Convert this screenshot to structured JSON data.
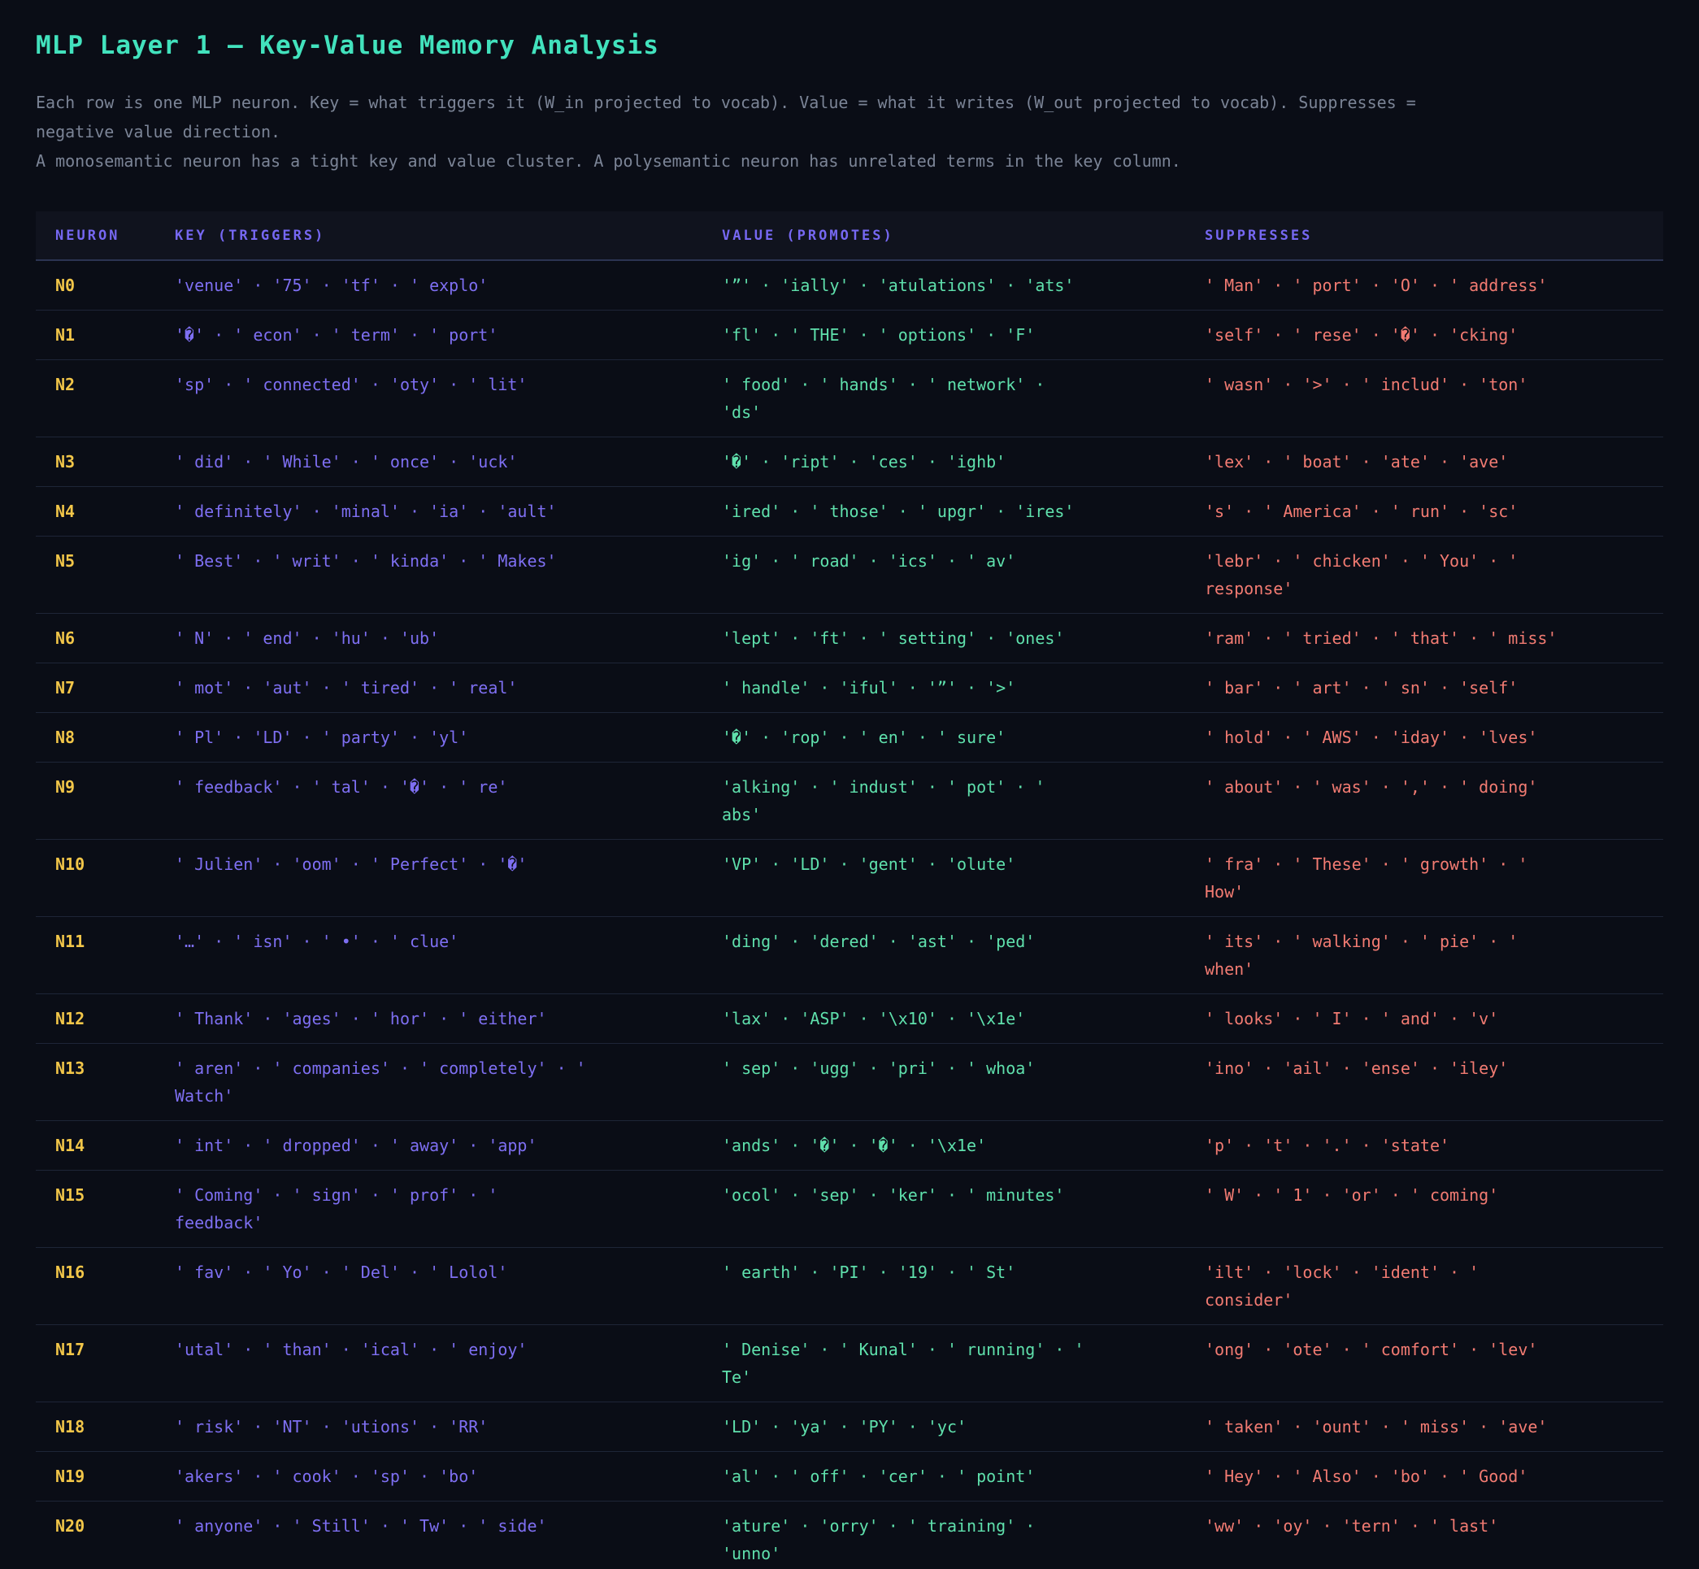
{
  "page": {
    "title": "MLP Layer 1 — Key-Value Memory Analysis",
    "intro_line1": "Each row is one MLP neuron. Key = what triggers it (W_in projected to vocab). Value = what it writes (W_out projected to vocab). Suppresses = negative value direction.",
    "intro_line2": "A monosemantic neuron has a tight key and value cluster. A polysemantic neuron has unrelated terms in the key column."
  },
  "palette": {
    "title_accent": "#42e2bd",
    "header_accent": "#7668f2",
    "neuron_color": "#f2c649",
    "key_color": "#7e6ff2",
    "value_color": "#5fe0ac",
    "suppress_color": "#f27b72",
    "page_bg": "#0a0d16",
    "header_bg": "#10131e"
  },
  "table": {
    "headers": {
      "neuron": "NEURON",
      "key": "KEY (TRIGGERS)",
      "value": "VALUE (PROMOTES)",
      "suppresses": "SUPPRESSES"
    },
    "token_separator": " · ",
    "rows": [
      {
        "id": "N0",
        "key": "'venue' · '75' · 'tf' · ' explo'",
        "value": "'”' · 'ially' · 'atulations' · 'ats'",
        "suppresses": "' Man' · ' port' · 'O' · ' address'"
      },
      {
        "id": "N1",
        "key": "'�' · ' econ' · ' term' · ' port'",
        "value": "'fl' · ' THE' · ' options' · 'F'",
        "suppresses": "'self' · ' rese' · '�' · 'cking'"
      },
      {
        "id": "N2",
        "key": "'sp' · ' connected' · 'oty' · ' lit'",
        "value": "' food' · ' hands' · ' network' · 'ds'",
        "suppresses": "' wasn' · '>' · ' includ' · 'ton'"
      },
      {
        "id": "N3",
        "key": "' did' · ' While' · ' once' · 'uck'",
        "value": "'�' · 'ript' · 'ces' · 'ighb'",
        "suppresses": "'lex' · ' boat' · 'ate' · 'ave'"
      },
      {
        "id": "N4",
        "key": "' definitely' · 'minal' · 'ia' · 'ault'",
        "value": "'ired' · ' those' · ' upgr' · 'ires'",
        "suppresses": "'s' · ' America' · ' run' · 'sc'"
      },
      {
        "id": "N5",
        "key": "' Best' · ' writ' · ' kinda' · ' Makes'",
        "value": "'ig' · ' road' · 'ics' · ' av'",
        "suppresses": "'lebr' · ' chicken' · ' You' · ' response'"
      },
      {
        "id": "N6",
        "key": "' N' · ' end' · 'hu' · 'ub'",
        "value": "'lept' · 'ft' · ' setting' · 'ones'",
        "suppresses": "'ram' · ' tried' · ' that' · ' miss'"
      },
      {
        "id": "N7",
        "key": "' mot' · 'aut' · ' tired' · ' real'",
        "value": "' handle' · 'iful' · '”' · '>'",
        "suppresses": "' bar' · ' art' · ' sn' · 'self'"
      },
      {
        "id": "N8",
        "key": "' Pl' · 'LD' · ' party' · 'yl'",
        "value": "'�' · 'rop' · ' en' · ' sure'",
        "suppresses": "' hold' · ' AWS' · 'iday' · 'lves'"
      },
      {
        "id": "N9",
        "key": "' feedback' · ' tal' · '�' · ' re'",
        "value": "'alking' · ' indust' · ' pot' · ' abs'",
        "suppresses": "' about' · ' was' · ',' · ' doing'"
      },
      {
        "id": "N10",
        "key": "' Julien' · 'oom' · ' Perfect' · '�'",
        "value": "'VP' · 'LD' · 'gent' · 'olute'",
        "suppresses": "' fra' · ' These' · ' growth' · ' How'"
      },
      {
        "id": "N11",
        "key": "'…' · ' isn' · ' •' · ' clue'",
        "value": "'ding' · 'dered' · 'ast' · 'ped'",
        "suppresses": "' its' · ' walking' · ' pie' · ' when'"
      },
      {
        "id": "N12",
        "key": "' Thank' · 'ages' · ' hor' · ' either'",
        "value": "'lax' · 'ASP' · '\\x10' · '\\x1e'",
        "suppresses": "' looks' · ' I' · ' and' · 'v'"
      },
      {
        "id": "N13",
        "key": "' aren' · ' companies' · ' completely' · ' Watch'",
        "value": "' sep' · 'ugg' · 'pri' · ' whoa'",
        "suppresses": "'ino' · 'ail' · 'ense' · 'iley'"
      },
      {
        "id": "N14",
        "key": "' int' · ' dropped' · ' away' · 'app'",
        "value": "'ands' · '�' · '�' · '\\x1e'",
        "suppresses": "'p' · 't' · '.' · 'state'"
      },
      {
        "id": "N15",
        "key": "' Coming' · ' sign' · ' prof' · ' feedback'",
        "value": "'ocol' · 'sep' · 'ker' · ' minutes'",
        "suppresses": "' W' · ' 1' · 'or' · ' coming'"
      },
      {
        "id": "N16",
        "key": "' fav' · ' Yo' · ' Del' · ' Lolol'",
        "value": "' earth' · 'PI' · '19' · ' St'",
        "suppresses": "'ilt' · 'lock' · 'ident' · ' consider'"
      },
      {
        "id": "N17",
        "key": "'utal' · ' than' · 'ical' · ' enjoy'",
        "value": "' Denise' · ' Kunal' · ' running' · ' Te'",
        "suppresses": "'ong' · 'ote' · ' comfort' · 'lev'"
      },
      {
        "id": "N18",
        "key": "' risk' · 'NT' · 'utions' · 'RR'",
        "value": "'LD' · 'ya' · 'PY' · 'yc'",
        "suppresses": "' taken' · 'ount' · ' miss' · 'ave'"
      },
      {
        "id": "N19",
        "key": "'akers' · ' cook' · 'sp' · 'bo'",
        "value": "'al' · ' off' · 'cer' · ' point'",
        "suppresses": "' Hey' · ' Also' · 'bo' · ' Good'"
      },
      {
        "id": "N20",
        "key": "' anyone' · ' Still' · ' Tw' · ' side'",
        "value": "'ature' · 'orry' · ' training' · 'unno'",
        "suppresses": "'ww' · 'oy' · 'tern' · ' last'"
      }
    ]
  }
}
